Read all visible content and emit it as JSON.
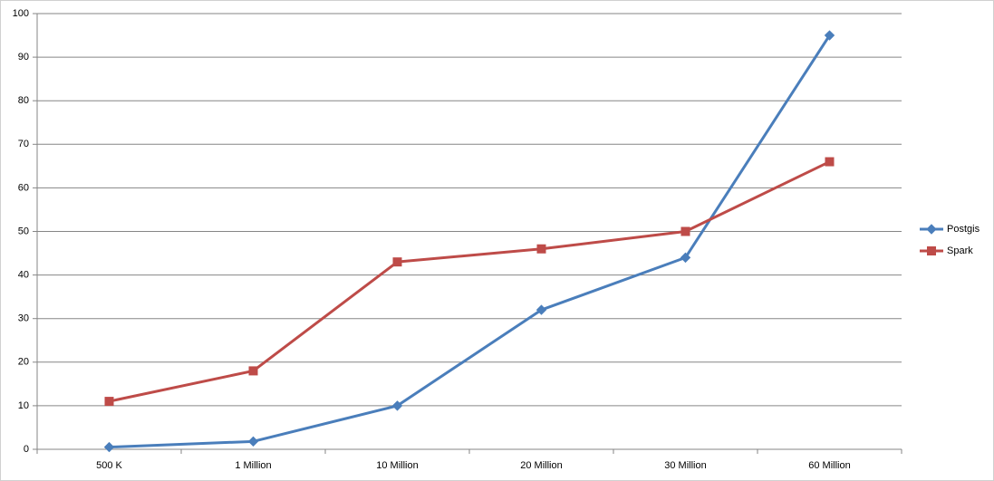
{
  "chart_data": {
    "type": "line",
    "categories": [
      "500 K",
      "1 Million",
      "10 Million",
      "20 Million",
      "30 Million",
      "60 Million"
    ],
    "series": [
      {
        "name": "Postgis",
        "color": "#4a7ebb",
        "marker": "diamond",
        "values": [
          0.5,
          1.8,
          10,
          32,
          44,
          95
        ]
      },
      {
        "name": "Spark",
        "color": "#be4b48",
        "marker": "square",
        "values": [
          11,
          18,
          43,
          46,
          50,
          66
        ]
      }
    ],
    "ylim": [
      0,
      100
    ],
    "yticks": [
      0,
      10,
      20,
      30,
      40,
      50,
      60,
      70,
      80,
      90,
      100
    ],
    "grid": true,
    "legend": "right"
  }
}
